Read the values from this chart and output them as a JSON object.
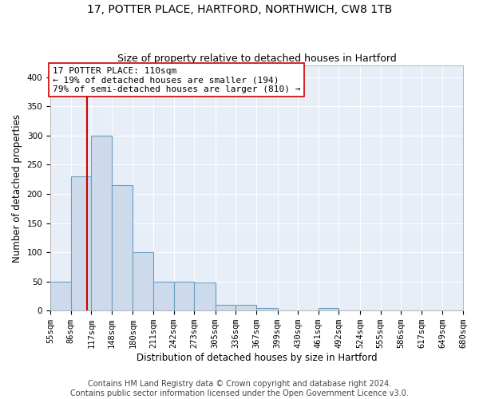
{
  "title_line1": "17, POTTER PLACE, HARTFORD, NORTHWICH, CW8 1TB",
  "title_line2": "Size of property relative to detached houses in Hartford",
  "xlabel": "Distribution of detached houses by size in Hartford",
  "ylabel": "Number of detached properties",
  "bar_edges": [
    55,
    86,
    117,
    148,
    180,
    211,
    242,
    273,
    305,
    336,
    367,
    399,
    430,
    461,
    492,
    524,
    555,
    586,
    617,
    649,
    680
  ],
  "bar_heights": [
    50,
    230,
    300,
    215,
    100,
    50,
    50,
    48,
    10,
    10,
    5,
    0,
    0,
    5,
    0,
    0,
    0,
    0,
    0,
    0
  ],
  "bar_color": "#cddaeb",
  "bar_edge_color": "#6a9fc0",
  "property_sqm": 110,
  "vline_color": "#cc0000",
  "annotation_text": "17 POTTER PLACE: 110sqm\n← 19% of detached houses are smaller (194)\n79% of semi-detached houses are larger (810) →",
  "annotation_box_color": "#ffffff",
  "annotation_border_color": "#cc0000",
  "ylim": [
    0,
    420
  ],
  "yticks": [
    0,
    50,
    100,
    150,
    200,
    250,
    300,
    350,
    400
  ],
  "footer_line1": "Contains HM Land Registry data © Crown copyright and database right 2024.",
  "footer_line2": "Contains public sector information licensed under the Open Government Licence v3.0.",
  "plot_bg_color": "#e8eef8",
  "title_fontsize": 10,
  "subtitle_fontsize": 9,
  "axis_label_fontsize": 8.5,
  "tick_fontsize": 7.5,
  "annotation_fontsize": 8,
  "footer_fontsize": 7
}
